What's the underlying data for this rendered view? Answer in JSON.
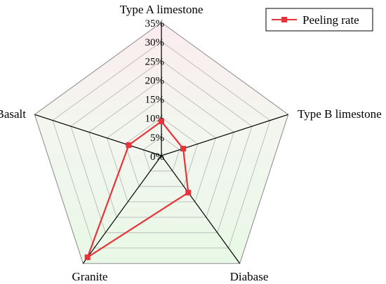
{
  "chart_data": {
    "type": "radar",
    "categories": [
      "Type A limestone",
      "Type B limestone",
      "Diabase",
      "Granite",
      "Basalt"
    ],
    "series": [
      {
        "name": "Peeling rate",
        "values": [
          9,
          6,
          12,
          33,
          9
        ],
        "color": "#e8333a"
      }
    ],
    "range": [
      0,
      35
    ],
    "ticks": [
      "0%",
      "5%",
      "10%",
      "15%",
      "20%",
      "25%",
      "30%",
      "35%"
    ],
    "tick_step": 5,
    "grid": true,
    "legend_position": "top-right"
  }
}
